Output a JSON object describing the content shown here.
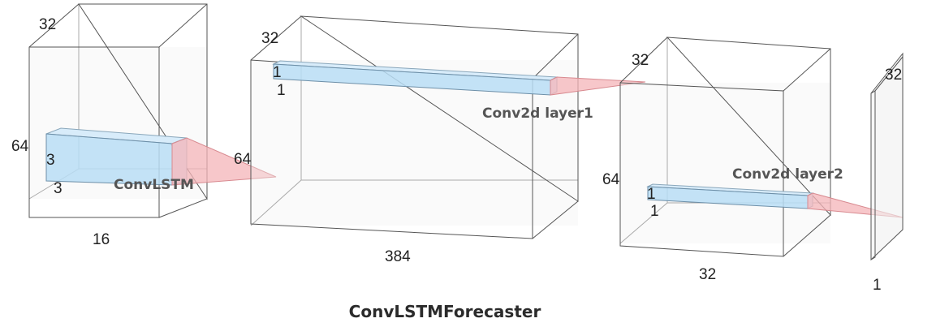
{
  "title": "ConvLSTMForecaster",
  "blocks": {
    "input": {
      "depth": "32",
      "height": "64",
      "width": "16"
    },
    "convlstm_out": {
      "depth": "32",
      "height": "64",
      "width": "384"
    },
    "conv1_out": {
      "depth": "32",
      "height": "64",
      "width": "32"
    },
    "output": {
      "depth": "32",
      "width": "1"
    }
  },
  "kernels": {
    "convlstm": {
      "label": "ConvLSTM",
      "k1": "3",
      "k2": "3"
    },
    "conv2d_1": {
      "label": "Conv2d layer1",
      "k1": "1",
      "k2": "1"
    },
    "conv2d_2": {
      "label": "Conv2d layer2",
      "k1": "1",
      "k2": "1"
    }
  },
  "colors": {
    "kernel_fill": "#b9ddf5",
    "projection_fill": "#f4b4b8",
    "edge": "#555555"
  }
}
